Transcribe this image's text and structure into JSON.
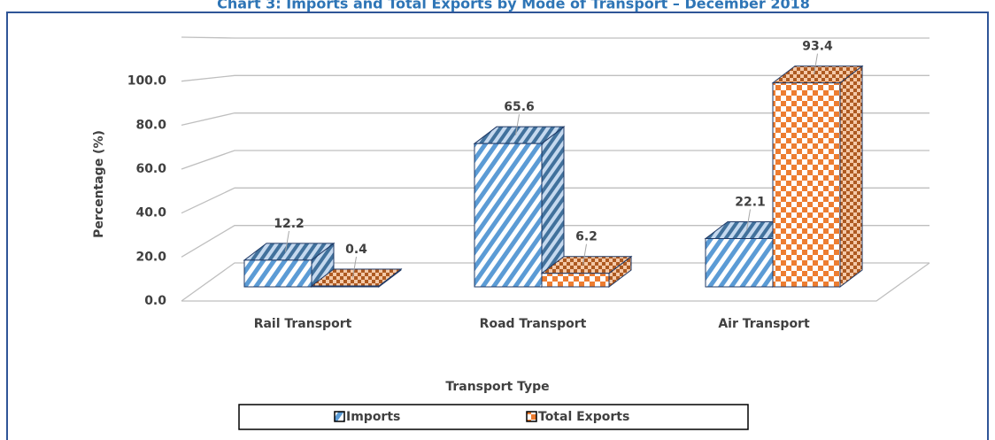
{
  "chart_data": {
    "type": "bar3d",
    "title": "Chart 3: Imports and Total Exports by Mode of Transport – December 2018",
    "y_label": "Percentage (%)",
    "x_label": "Transport Type",
    "categories": [
      "Rail Transport",
      "Road Transport",
      "Air Transport"
    ],
    "series": [
      {
        "name": "Imports",
        "color": "#5b9bd5",
        "values": [
          12.2,
          65.6,
          22.1
        ]
      },
      {
        "name": "Total Exports",
        "color": "#ed7d31",
        "values": [
          0.4,
          6.2,
          93.4
        ]
      }
    ],
    "ylim": [
      0,
      120
    ],
    "yticks": [
      {
        "value": 0,
        "label": "0.0"
      },
      {
        "value": 20,
        "label": "20.0"
      },
      {
        "value": 40,
        "label": "40.0"
      },
      {
        "value": 60,
        "label": "60.0"
      },
      {
        "value": 80,
        "label": "80.0"
      },
      {
        "value": 100,
        "label": "100.0"
      }
    ],
    "grid": true
  }
}
